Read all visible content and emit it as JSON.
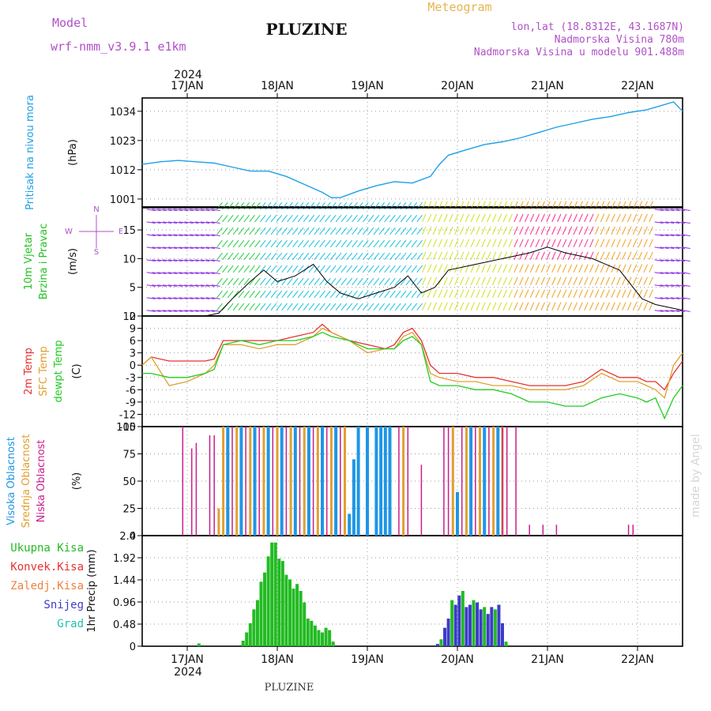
{
  "header": {
    "model_label": "Model",
    "model_name": "wrf-nmm_v3.9.1  e1km",
    "station": "PLUZINE",
    "meteogram": "Meteogram",
    "lonlat": "lon,lat (18.8312E, 43.1687N)",
    "altitude": "Nadmorska Visina 780m",
    "model_altitude": "Nadmorska Visina u modelu 901.488m",
    "year": "2024",
    "footer_station": "PLUZINE",
    "credit": "made by Angel"
  },
  "colors": {
    "pressure": "#1ea0e6",
    "wind_green": "#22c022",
    "temp_red": "#e63232",
    "sfc_orange": "#e0a030",
    "dew_green": "#22cc22",
    "cloud_high": "#1e96e6",
    "cloud_mid": "#e0a030",
    "cloud_low": "#c81e8c",
    "precip_total": "#22bb22",
    "precip_snow": "#3c3cc8"
  },
  "chart_data": [
    {
      "type": "line",
      "panel": "pressure",
      "ylabel_lines": [
        "Pritisak na nivou mora",
        "(hPa)"
      ],
      "ylim": [
        998,
        1039
      ],
      "yticks": [
        1001,
        1012,
        1023,
        1034
      ],
      "x_days": [
        17,
        18,
        19,
        20,
        21,
        22
      ],
      "x_tick_labels": [
        "17JAN",
        "18JAN",
        "19JAN",
        "20JAN",
        "21JAN",
        "22JAN"
      ],
      "x": [
        16.5,
        16.7,
        16.9,
        17.1,
        17.3,
        17.5,
        17.7,
        17.9,
        18.1,
        18.3,
        18.5,
        18.6,
        18.7,
        18.9,
        19.1,
        19.3,
        19.5,
        19.7,
        19.8,
        19.9,
        20.1,
        20.3,
        20.5,
        20.7,
        20.9,
        21.1,
        21.3,
        21.5,
        21.7,
        21.9,
        22.1,
        22.25,
        22.4,
        22.5
      ],
      "series": [
        {
          "values": [
            1014,
            1015,
            1015.5,
            1015,
            1014.5,
            1013,
            1011.5,
            1011.5,
            1009.5,
            1006.5,
            1003.5,
            1001.5,
            1001.5,
            1004,
            1006,
            1007.5,
            1007,
            1009.5,
            1014,
            1017.5,
            1019.5,
            1021.5,
            1022.5,
            1024,
            1026,
            1028,
            1029.5,
            1031,
            1032,
            1033.5,
            1034.5,
            1036,
            1037.5,
            1034
          ]
        }
      ]
    },
    {
      "type": "line",
      "panel": "wind",
      "ylabel_lines": [
        "10m Vjetar",
        "Brzina i Pravac",
        "(m/s)"
      ],
      "direction_labels": [
        "N",
        "S",
        "E",
        "W"
      ],
      "ylim": [
        0,
        19
      ],
      "yticks": [
        0,
        5,
        10,
        15
      ],
      "x": [
        16.5,
        16.8,
        17.0,
        17.2,
        17.35,
        17.5,
        17.7,
        17.85,
        18.0,
        18.2,
        18.4,
        18.55,
        18.7,
        18.9,
        19.1,
        19.3,
        19.45,
        19.6,
        19.75,
        19.9,
        20.2,
        20.5,
        20.8,
        21.0,
        21.2,
        21.5,
        21.8,
        21.95,
        22.05,
        22.2,
        22.5
      ],
      "series": [
        {
          "values": [
            0,
            0,
            0,
            0,
            0.5,
            3,
            6,
            8,
            6,
            7,
            9,
            6,
            4,
            3,
            4,
            5,
            7,
            4,
            5,
            8,
            9,
            10,
            11,
            12,
            11,
            10,
            8,
            5,
            3,
            2,
            1
          ]
        }
      ]
    },
    {
      "type": "line",
      "panel": "temperature",
      "ylabel_lines": [
        "2m Temp",
        "SFC Temp",
        "dewpt Temp",
        "(C)"
      ],
      "ylim": [
        -15,
        12
      ],
      "yticks": [
        -15,
        -12,
        -9,
        -6,
        -3,
        0,
        3,
        6,
        9,
        12
      ],
      "x": [
        16.5,
        16.6,
        16.8,
        17.0,
        17.2,
        17.3,
        17.4,
        17.6,
        17.8,
        18.0,
        18.2,
        18.4,
        18.5,
        18.6,
        18.8,
        19.0,
        19.2,
        19.3,
        19.4,
        19.5,
        19.6,
        19.7,
        19.8,
        20.0,
        20.2,
        20.4,
        20.6,
        20.8,
        21.0,
        21.2,
        21.4,
        21.6,
        21.8,
        22.0,
        22.1,
        22.2,
        22.3,
        22.4,
        22.5
      ],
      "series": [
        {
          "name": "2m Temp",
          "values": [
            0,
            2,
            1,
            1,
            1,
            1.5,
            6,
            6,
            6,
            6,
            7,
            8,
            10,
            8,
            6,
            5,
            4,
            5,
            8,
            9,
            6,
            0,
            -2,
            -2,
            -3,
            -3,
            -4,
            -5,
            -5,
            -5,
            -4,
            -1,
            -3,
            -3,
            -4,
            -4,
            -6,
            -2,
            1
          ]
        },
        {
          "name": "SFC Temp",
          "values": [
            0,
            2,
            -5,
            -4,
            -2,
            0,
            5,
            5,
            4,
            5,
            5,
            7,
            9,
            8,
            6,
            3,
            4,
            4,
            7,
            8,
            5,
            -2,
            -3,
            -4,
            -4,
            -5,
            -5,
            -6,
            -6,
            -6,
            -5,
            -2,
            -4,
            -4,
            -5,
            -6,
            -8,
            0,
            3
          ]
        },
        {
          "name": "dewpt Temp",
          "values": [
            -2,
            -2,
            -3,
            -3,
            -2,
            -1,
            5,
            6,
            5,
            6,
            6,
            7,
            8,
            7,
            6,
            4,
            4,
            4,
            6,
            7,
            5,
            -4,
            -5,
            -5,
            -6,
            -6,
            -7,
            -9,
            -9,
            -10,
            -10,
            -8,
            -7,
            -8,
            -9,
            -8,
            -13,
            -8,
            -5
          ]
        }
      ]
    },
    {
      "type": "bar",
      "panel": "clouds",
      "ylabel_lines": [
        "Visoka Oblacnost",
        "Srednja Oblacnost",
        "Niska Oblacnost",
        "(%)"
      ],
      "ylim": [
        0,
        100
      ],
      "yticks": [
        0,
        25,
        50,
        75,
        100
      ],
      "series": [
        {
          "name": "Niska Oblacnost",
          "x": [
            16.95,
            17.05,
            17.1,
            17.25,
            17.3,
            17.5,
            17.65,
            17.8,
            17.95,
            18.1,
            18.25,
            18.4,
            18.55,
            18.7,
            19.35,
            19.45,
            19.6,
            19.85,
            19.9,
            20.05,
            20.2,
            20.35,
            20.5,
            20.55,
            20.65,
            20.8,
            20.95,
            21.1,
            21.9,
            21.95
          ],
          "values": [
            100,
            80,
            85,
            92,
            92,
            100,
            100,
            100,
            100,
            100,
            100,
            100,
            100,
            100,
            100,
            100,
            65,
            100,
            100,
            100,
            100,
            100,
            100,
            100,
            100,
            10,
            10,
            10,
            10,
            10
          ]
        },
        {
          "name": "Srednja Oblacnost",
          "x": [
            17.35,
            17.4,
            17.55,
            17.7,
            17.85,
            18.0,
            18.15,
            18.3,
            18.45,
            18.6,
            18.75,
            18.8,
            19.4,
            19.95,
            20.1,
            20.25,
            20.4,
            20.5
          ],
          "values": [
            25,
            100,
            100,
            100,
            100,
            100,
            100,
            100,
            100,
            100,
            100,
            5,
            100,
            100,
            100,
            100,
            100,
            100
          ]
        },
        {
          "name": "Visoka Oblacnost",
          "x": [
            17.45,
            17.6,
            17.75,
            17.9,
            18.05,
            18.2,
            18.35,
            18.5,
            18.65,
            18.8,
            18.85,
            18.9,
            19.0,
            19.1,
            19.15,
            19.2,
            19.25,
            20.0,
            20.15,
            20.3,
            20.45
          ],
          "values": [
            100,
            100,
            100,
            100,
            100,
            100,
            100,
            100,
            100,
            20,
            70,
            100,
            100,
            100,
            100,
            100,
            100,
            40,
            100,
            100,
            100
          ]
        }
      ]
    },
    {
      "type": "bar",
      "panel": "precipitation",
      "ylabel_lines": [
        "1hr Precip (mm)"
      ],
      "legend": [
        "Ukupna Kisa",
        "Konvek.Kisa",
        "Zaledj.Kisa",
        "Snijeg",
        "Grad"
      ],
      "ylim": [
        0,
        2.4
      ],
      "yticks": [
        0,
        0.48,
        0.96,
        1.44,
        1.92,
        2.4
      ],
      "series": [
        {
          "name": "Ukupna Kisa",
          "x": [
            17.13,
            17.62,
            17.66,
            17.7,
            17.74,
            17.78,
            17.82,
            17.86,
            17.9,
            17.94,
            17.98,
            18.02,
            18.06,
            18.1,
            18.14,
            18.18,
            18.22,
            18.26,
            18.3,
            18.34,
            18.38,
            18.42,
            18.46,
            18.5,
            18.54,
            18.58,
            18.62
          ],
          "values": [
            0.06,
            0.12,
            0.3,
            0.5,
            0.8,
            1.0,
            1.4,
            1.6,
            1.95,
            2.25,
            2.25,
            1.9,
            1.85,
            1.55,
            1.45,
            1.25,
            1.35,
            1.2,
            0.95,
            0.6,
            0.55,
            0.45,
            0.35,
            0.3,
            0.4,
            0.35,
            0.1
          ]
        },
        {
          "name": "Snijeg",
          "x": [
            19.78,
            19.82,
            19.86,
            19.9,
            19.94,
            19.98,
            20.02,
            20.06,
            20.1,
            20.14,
            20.18,
            20.22,
            20.26,
            20.3,
            20.34,
            20.38,
            20.42,
            20.46,
            20.5,
            20.54
          ],
          "values": [
            0.05,
            0.15,
            0.4,
            0.6,
            1.0,
            0.9,
            1.1,
            1.2,
            0.85,
            0.9,
            1.0,
            0.95,
            0.8,
            0.85,
            0.7,
            0.85,
            0.8,
            0.9,
            0.5,
            0.1
          ]
        }
      ]
    }
  ]
}
